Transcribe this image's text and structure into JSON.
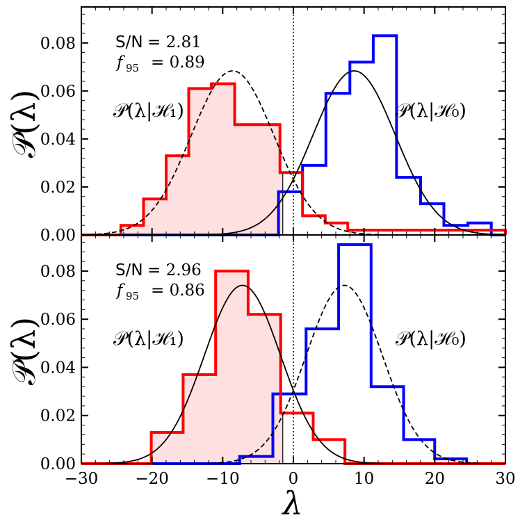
{
  "figure": {
    "xlabel": "λ",
    "ylabel": "𝒫(λ)",
    "xlim": [
      -30,
      30
    ],
    "ylim": [
      0,
      0.095
    ],
    "xticks": [
      -30,
      -20,
      -10,
      0,
      10,
      20,
      30
    ],
    "xtick_labels": [
      "−30",
      "−20",
      "−10",
      "0",
      "10",
      "20",
      "30"
    ],
    "yticks": [
      0.0,
      0.02,
      0.04,
      0.06,
      0.08
    ],
    "ytick_labels": [
      "0.00",
      "0.02",
      "0.04",
      "0.06",
      "0.08"
    ],
    "colors": {
      "h1": "#ff0000",
      "h0": "#0000ff",
      "fill": "#ffe0e0",
      "curve": "#000000"
    }
  },
  "chart_data": [
    {
      "type": "histogram",
      "panel": "top",
      "annotation_sn_label": "S/N",
      "annotation_sn_value": "= 2.81",
      "annotation_f_label": "f",
      "annotation_f_sub": "95",
      "annotation_f_value": "= 0.89",
      "label_h1": "𝒫(λ|ℋ₁)",
      "label_h0": "𝒫(λ|ℋ₀)",
      "threshold": -1.5,
      "vline": 0,
      "h1_hist": {
        "edges": [
          -30,
          -24.4,
          -21.2,
          -18.0,
          -14.8,
          -11.6,
          -8.3,
          -5.1,
          -1.9,
          1.3,
          4.5,
          7.7,
          30
        ],
        "values": [
          0,
          0.004,
          0.015,
          0.033,
          0.061,
          0.063,
          0.046,
          0.046,
          0.026,
          0.008,
          0.005,
          0.002,
          0
        ]
      },
      "h0_hist": {
        "edges": [
          -30,
          -2.1,
          1.3,
          4.6,
          8.0,
          11.3,
          14.6,
          18.0,
          21.3,
          24.7,
          28.0,
          30
        ],
        "values": [
          0,
          0.018,
          0.029,
          0.059,
          0.072,
          0.083,
          0.024,
          0.013,
          0.004,
          0.005,
          0
        ]
      },
      "h1_curve": {
        "mu": -8.6,
        "sigma": 5.85,
        "style": "dashed"
      },
      "h0_curve": {
        "mu": 8.6,
        "sigma": 5.85,
        "style": "solid"
      }
    },
    {
      "type": "histogram",
      "panel": "bottom",
      "annotation_sn_label": "S/N",
      "annotation_sn_value": "= 2.96",
      "annotation_f_label": "f",
      "annotation_f_sub": "95",
      "annotation_f_value": "= 0.86",
      "label_h1": "𝒫(λ|ℋ₁)",
      "label_h0": "𝒫(λ|ℋ₀)",
      "threshold": -1.5,
      "vline": 0,
      "h1_hist": {
        "edges": [
          -30,
          -20.1,
          -15.6,
          -11.0,
          -6.4,
          -1.8,
          2.8,
          7.3,
          30
        ],
        "values": [
          0,
          0.013,
          0.037,
          0.08,
          0.062,
          0.021,
          0.01,
          0
        ]
      },
      "h0_hist": {
        "edges": [
          -30,
          -7.6,
          -2.9,
          1.8,
          6.4,
          11.0,
          15.6,
          20.0,
          24.5,
          30
        ],
        "values": [
          0,
          0.003,
          0.029,
          0.056,
          0.091,
          0.032,
          0.01,
          0.002,
          0
        ]
      },
      "h1_curve": {
        "mu": -7.2,
        "sigma": 5.4,
        "style": "solid"
      },
      "h0_curve": {
        "mu": 7.2,
        "sigma": 5.4,
        "style": "dashed"
      }
    }
  ]
}
